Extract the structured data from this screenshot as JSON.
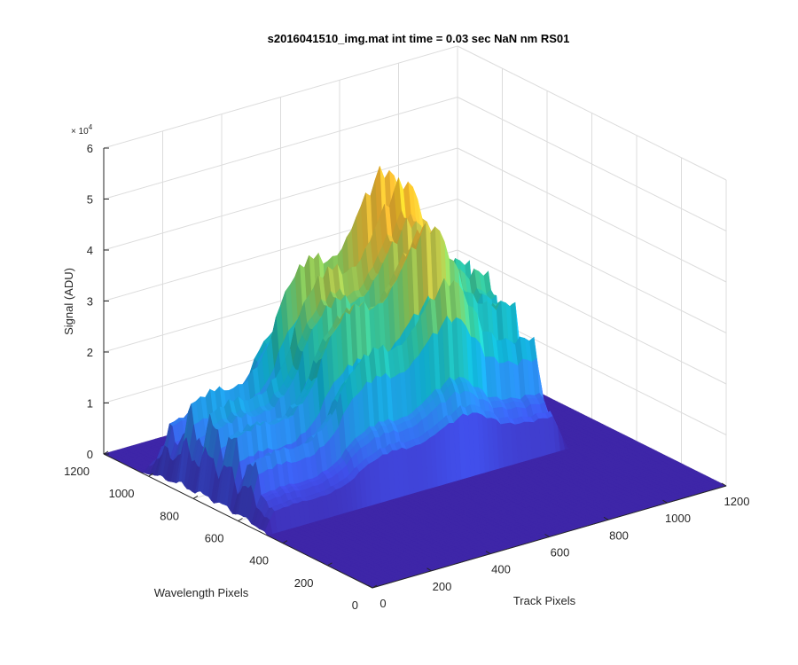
{
  "chart_data": {
    "type": "surface",
    "title": "s2016041510_img.mat int time = 0.03 sec  NaN nm RS01",
    "xlabel": "Track Pixels",
    "ylabel": "Wavelength Pixels",
    "zlabel": "Signal (ADU)",
    "z_exponent_base": "× 10",
    "z_exponent_power": "4",
    "xlim": [
      0,
      1200
    ],
    "ylim": [
      0,
      1200
    ],
    "zlim": [
      0,
      60000
    ],
    "x_ticks": [
      "0",
      "200",
      "400",
      "600",
      "800",
      "1000",
      "1200"
    ],
    "y_ticks": [
      "0",
      "200",
      "400",
      "600",
      "800",
      "1000",
      "1200"
    ],
    "z_ticks": [
      "0",
      "1",
      "2",
      "3",
      "4",
      "5",
      "6"
    ],
    "grid": true,
    "colormap": [
      "#3e26a8",
      "#4154f3",
      "#2b91f4",
      "#10b4d6",
      "#2ec4a1",
      "#87c75a",
      "#d7ba3a",
      "#fdb92f",
      "#f9fb15"
    ],
    "signal_track_range": [
      0,
      1024
    ],
    "signal_wavelength_range": [
      470,
      1024
    ],
    "peak_signal": 54000,
    "baseline_signal": 0
  }
}
